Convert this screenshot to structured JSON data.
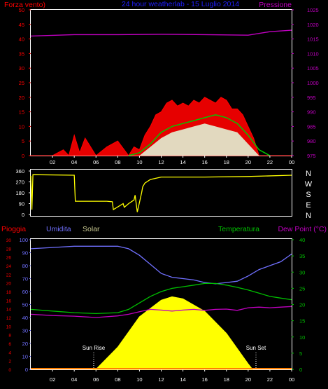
{
  "header": {
    "left_label": "Forza vento)",
    "title": "24 hour weatherlab - 15 Luglio 2014",
    "right_label": "Pressione"
  },
  "colors": {
    "background": "#000000",
    "frame": "#ffffff",
    "wind_gust": "#ff0000",
    "wind_avg": "#00c800",
    "wind_speed": "#e0ffe0",
    "pressure": "#c000c0",
    "direction": "#ffff00",
    "rain": "#ff0000",
    "humidity": "#7070ff",
    "solar": "#ffff00",
    "temperature": "#00c000",
    "dewpoint": "#c000c0",
    "title": "#0000ff",
    "left_axis": "#ff0000",
    "right_axis": "#c000c0",
    "green_axis": "#00c000",
    "humidity_axis": "#7070ff"
  },
  "compass": [
    "N",
    "W",
    "S",
    "E",
    "N"
  ],
  "bottom_labels": {
    "rain": "Pioggia",
    "humidity": "Umidita",
    "solar": "Solar",
    "temperature": "Temperatura",
    "dewpoint": "Dew Point (°C)",
    "sunrise": "Sun Rise",
    "sunset": "Sun Set"
  },
  "chart_data": [
    {
      "type": "line",
      "name": "wind",
      "x_ticks": [
        "02",
        "04",
        "06",
        "08",
        "10",
        "12",
        "14",
        "16",
        "18",
        "20",
        "22",
        "00"
      ],
      "left_axis": {
        "label": "Forza vento)",
        "ticks": [
          0,
          5,
          10,
          15,
          20,
          25,
          30,
          35,
          40,
          45,
          50
        ],
        "ylim": [
          0,
          50
        ]
      },
      "right_axis": {
        "label": "Pressione",
        "ticks": [
          975,
          980,
          985,
          990,
          995,
          1000,
          1005,
          1010,
          1015,
          1020,
          1025
        ],
        "ylim": [
          975,
          1025
        ]
      },
      "series": [
        {
          "key": "gust",
          "x": [
            0,
            1,
            2,
            3,
            3.5,
            4,
            4.5,
            5,
            6,
            7,
            8,
            9,
            9.5,
            10,
            10.5,
            11,
            11.5,
            12,
            12.5,
            13,
            13.5,
            14,
            14.5,
            15,
            15.5,
            16,
            16.5,
            17,
            17.5,
            18,
            18.5,
            19,
            19.5,
            20,
            20.5,
            21,
            22,
            23,
            24
          ],
          "y": [
            0,
            0,
            0,
            2,
            0,
            7,
            1,
            6,
            0,
            3,
            5,
            0,
            3,
            2,
            7,
            10,
            14,
            15,
            18,
            19,
            17,
            18,
            17,
            19,
            18,
            20,
            19,
            18,
            20,
            19,
            16,
            16,
            14,
            10,
            6,
            0,
            0,
            0,
            0
          ]
        },
        {
          "key": "avg",
          "x": [
            9,
            10,
            11,
            12,
            13,
            14,
            15,
            16,
            17,
            18,
            19,
            20,
            21,
            22
          ],
          "y": [
            0,
            1,
            4,
            8,
            10,
            11,
            12,
            13,
            14,
            13,
            11,
            7,
            2,
            0
          ]
        },
        {
          "key": "speed",
          "x": [
            9,
            10,
            11,
            12,
            13,
            14,
            15,
            16,
            17,
            18,
            19,
            20,
            21
          ],
          "y": [
            0,
            0,
            3,
            6,
            8,
            9,
            10,
            11,
            10,
            9,
            8,
            4,
            0
          ]
        },
        {
          "key": "pressure",
          "x": [
            0,
            4,
            8,
            12,
            16,
            20,
            22,
            24
          ],
          "y": [
            1016.0,
            1016.5,
            1016.5,
            1016.6,
            1016.5,
            1016.3,
            1017.5,
            1018.0
          ]
        }
      ]
    },
    {
      "type": "line",
      "name": "wind_direction",
      "left_ticks": [
        360,
        270,
        180,
        90,
        0
      ],
      "ylim": [
        0,
        360
      ],
      "series": [
        {
          "key": "direction",
          "x": [
            0,
            0.1,
            0.2,
            4.0,
            4.1,
            7.0,
            7.5,
            7.6,
            8.5,
            8.6,
            9.0,
            9.5,
            9.6,
            9.8,
            10.2,
            10.3,
            10.5,
            11.0,
            12,
            16,
            20,
            24
          ],
          "y": [
            320,
            40,
            330,
            325,
            110,
            110,
            105,
            40,
            90,
            60,
            90,
            120,
            160,
            20,
            180,
            230,
            260,
            290,
            310,
            310,
            315,
            325
          ]
        }
      ]
    },
    {
      "type": "area",
      "name": "humidity_temperature_solar",
      "axes": {
        "rain_ticks": [
          0,
          2,
          4,
          6,
          8,
          10,
          12,
          14,
          16,
          18,
          20,
          22,
          24,
          26,
          28,
          30
        ],
        "humidity_ticks": [
          0,
          10,
          20,
          30,
          40,
          50,
          60,
          70,
          80,
          90,
          100
        ],
        "temperature_ticks": [
          0,
          5,
          10,
          15,
          20,
          25,
          30,
          35,
          40
        ]
      },
      "series": [
        {
          "key": "humidity",
          "x": [
            0,
            2,
            4,
            6,
            8,
            9,
            10,
            11,
            12,
            13,
            14,
            15,
            16,
            17,
            18,
            19,
            20,
            21,
            22,
            23,
            24
          ],
          "y": [
            93,
            94,
            95,
            95,
            95,
            93,
            88,
            81,
            74,
            71,
            70,
            69,
            67,
            66,
            67,
            68,
            72,
            77,
            80,
            83,
            89
          ]
        },
        {
          "key": "solar",
          "x": [
            5.7,
            6,
            8,
            10,
            12,
            13,
            14,
            16,
            18,
            20,
            20.4
          ],
          "y": [
            0,
            1,
            160,
            380,
            500,
            525,
            510,
            420,
            260,
            40,
            0
          ]
        },
        {
          "key": "temperature",
          "x": [
            0,
            2,
            4,
            6,
            8,
            9,
            10,
            11,
            12,
            13,
            14,
            15,
            16,
            17,
            18,
            19,
            20,
            21,
            22,
            23,
            24
          ],
          "y": [
            18.5,
            18.0,
            17.5,
            17.2,
            17.5,
            18.5,
            20.5,
            22.5,
            24.0,
            25.0,
            25.5,
            26.0,
            26.5,
            26.5,
            26.0,
            25.3,
            24.5,
            23.5,
            22.5,
            22.0,
            21.5
          ]
        },
        {
          "key": "dewpoint",
          "x": [
            0,
            2,
            4,
            6,
            8,
            9,
            10,
            11,
            12,
            13,
            14,
            15,
            16,
            17,
            18,
            19,
            20,
            21,
            22,
            23,
            24
          ],
          "y": [
            17.0,
            16.6,
            16.4,
            16.0,
            16.5,
            17.0,
            17.8,
            18.5,
            18.3,
            18.0,
            18.3,
            18.5,
            18.2,
            18.5,
            18.6,
            18.2,
            19.0,
            19.2,
            19.0,
            19.2,
            19.4
          ]
        }
      ],
      "solar_max_wm2": 525
    }
  ]
}
